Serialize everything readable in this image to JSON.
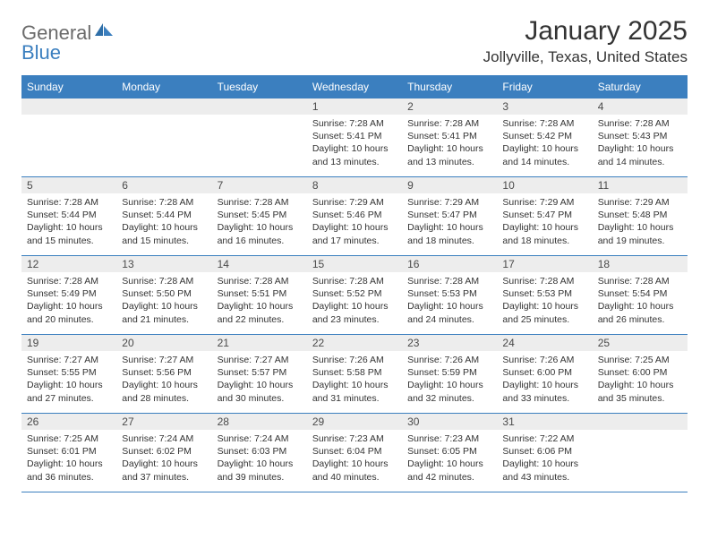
{
  "logo": {
    "text1": "General",
    "text2": "Blue"
  },
  "title": "January 2025",
  "location": "Jollyville, Texas, United States",
  "colors": {
    "header_bg": "#3b7fbf",
    "header_text": "#ffffff",
    "daynum_bg": "#ededed",
    "border": "#3b7fbf",
    "logo_gray": "#6b6b6b",
    "logo_blue": "#3b7fbf",
    "body_text": "#333333",
    "page_bg": "#ffffff"
  },
  "weekdays": [
    "Sunday",
    "Monday",
    "Tuesday",
    "Wednesday",
    "Thursday",
    "Friday",
    "Saturday"
  ],
  "weeks": [
    [
      null,
      null,
      null,
      {
        "n": "1",
        "sr": "7:28 AM",
        "ss": "5:41 PM",
        "dl": "10 hours and 13 minutes."
      },
      {
        "n": "2",
        "sr": "7:28 AM",
        "ss": "5:41 PM",
        "dl": "10 hours and 13 minutes."
      },
      {
        "n": "3",
        "sr": "7:28 AM",
        "ss": "5:42 PM",
        "dl": "10 hours and 14 minutes."
      },
      {
        "n": "4",
        "sr": "7:28 AM",
        "ss": "5:43 PM",
        "dl": "10 hours and 14 minutes."
      }
    ],
    [
      {
        "n": "5",
        "sr": "7:28 AM",
        "ss": "5:44 PM",
        "dl": "10 hours and 15 minutes."
      },
      {
        "n": "6",
        "sr": "7:28 AM",
        "ss": "5:44 PM",
        "dl": "10 hours and 15 minutes."
      },
      {
        "n": "7",
        "sr": "7:28 AM",
        "ss": "5:45 PM",
        "dl": "10 hours and 16 minutes."
      },
      {
        "n": "8",
        "sr": "7:29 AM",
        "ss": "5:46 PM",
        "dl": "10 hours and 17 minutes."
      },
      {
        "n": "9",
        "sr": "7:29 AM",
        "ss": "5:47 PM",
        "dl": "10 hours and 18 minutes."
      },
      {
        "n": "10",
        "sr": "7:29 AM",
        "ss": "5:47 PM",
        "dl": "10 hours and 18 minutes."
      },
      {
        "n": "11",
        "sr": "7:29 AM",
        "ss": "5:48 PM",
        "dl": "10 hours and 19 minutes."
      }
    ],
    [
      {
        "n": "12",
        "sr": "7:28 AM",
        "ss": "5:49 PM",
        "dl": "10 hours and 20 minutes."
      },
      {
        "n": "13",
        "sr": "7:28 AM",
        "ss": "5:50 PM",
        "dl": "10 hours and 21 minutes."
      },
      {
        "n": "14",
        "sr": "7:28 AM",
        "ss": "5:51 PM",
        "dl": "10 hours and 22 minutes."
      },
      {
        "n": "15",
        "sr": "7:28 AM",
        "ss": "5:52 PM",
        "dl": "10 hours and 23 minutes."
      },
      {
        "n": "16",
        "sr": "7:28 AM",
        "ss": "5:53 PM",
        "dl": "10 hours and 24 minutes."
      },
      {
        "n": "17",
        "sr": "7:28 AM",
        "ss": "5:53 PM",
        "dl": "10 hours and 25 minutes."
      },
      {
        "n": "18",
        "sr": "7:28 AM",
        "ss": "5:54 PM",
        "dl": "10 hours and 26 minutes."
      }
    ],
    [
      {
        "n": "19",
        "sr": "7:27 AM",
        "ss": "5:55 PM",
        "dl": "10 hours and 27 minutes."
      },
      {
        "n": "20",
        "sr": "7:27 AM",
        "ss": "5:56 PM",
        "dl": "10 hours and 28 minutes."
      },
      {
        "n": "21",
        "sr": "7:27 AM",
        "ss": "5:57 PM",
        "dl": "10 hours and 30 minutes."
      },
      {
        "n": "22",
        "sr": "7:26 AM",
        "ss": "5:58 PM",
        "dl": "10 hours and 31 minutes."
      },
      {
        "n": "23",
        "sr": "7:26 AM",
        "ss": "5:59 PM",
        "dl": "10 hours and 32 minutes."
      },
      {
        "n": "24",
        "sr": "7:26 AM",
        "ss": "6:00 PM",
        "dl": "10 hours and 33 minutes."
      },
      {
        "n": "25",
        "sr": "7:25 AM",
        "ss": "6:00 PM",
        "dl": "10 hours and 35 minutes."
      }
    ],
    [
      {
        "n": "26",
        "sr": "7:25 AM",
        "ss": "6:01 PM",
        "dl": "10 hours and 36 minutes."
      },
      {
        "n": "27",
        "sr": "7:24 AM",
        "ss": "6:02 PM",
        "dl": "10 hours and 37 minutes."
      },
      {
        "n": "28",
        "sr": "7:24 AM",
        "ss": "6:03 PM",
        "dl": "10 hours and 39 minutes."
      },
      {
        "n": "29",
        "sr": "7:23 AM",
        "ss": "6:04 PM",
        "dl": "10 hours and 40 minutes."
      },
      {
        "n": "30",
        "sr": "7:23 AM",
        "ss": "6:05 PM",
        "dl": "10 hours and 42 minutes."
      },
      {
        "n": "31",
        "sr": "7:22 AM",
        "ss": "6:06 PM",
        "dl": "10 hours and 43 minutes."
      },
      null
    ]
  ],
  "labels": {
    "sunrise": "Sunrise:",
    "sunset": "Sunset:",
    "daylight": "Daylight:"
  }
}
